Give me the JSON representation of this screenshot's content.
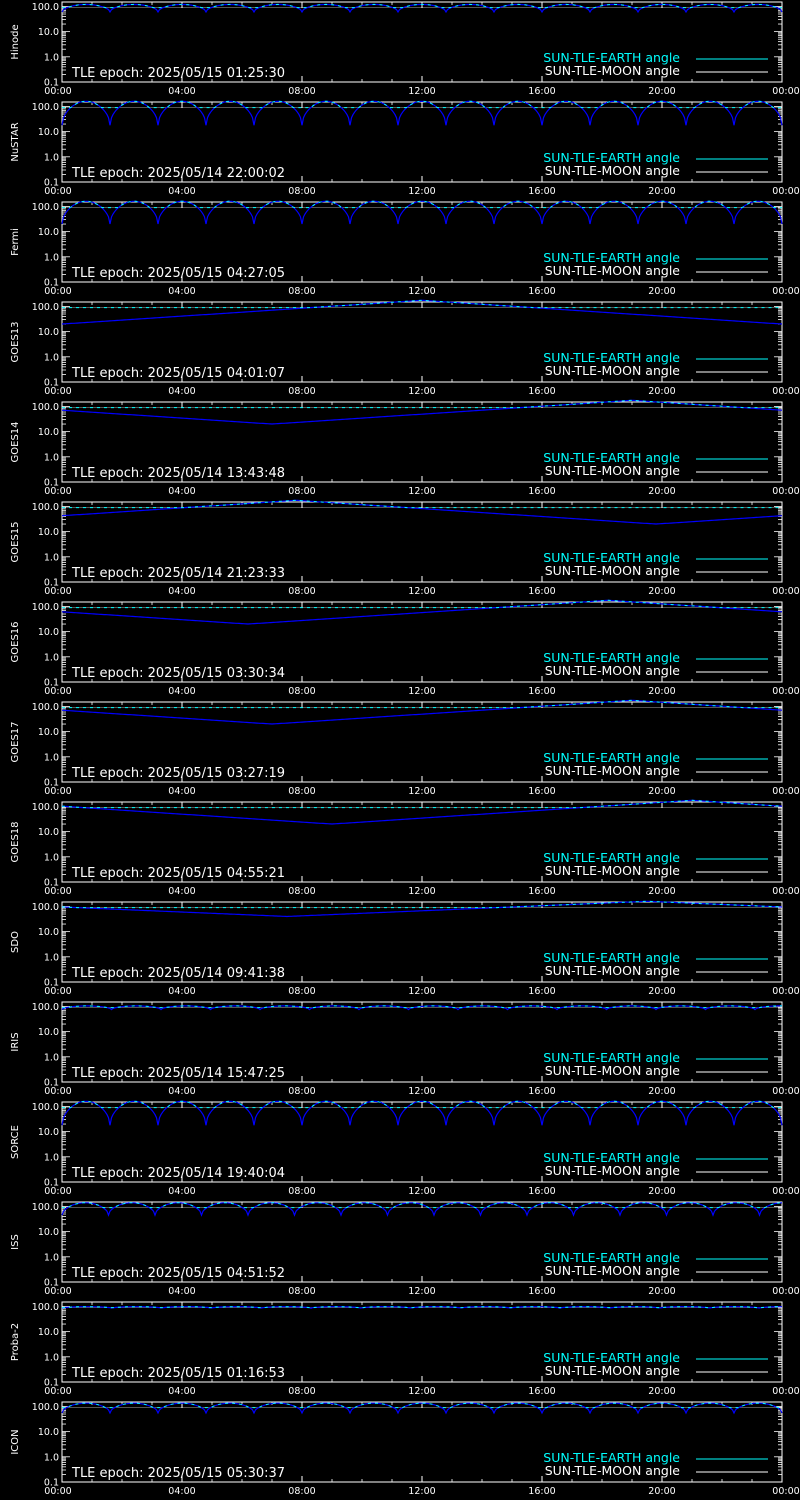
{
  "colors": {
    "background": "#000000",
    "axes": "#ffffff",
    "sun_tle_earth": "#00ffff",
    "sun_tle_moon": "#ffffff",
    "curve_fill": "#0000ff"
  },
  "chart_data": [
    {
      "type": "line",
      "ylabel": "Hinode",
      "epoch": "TLE epoch: 2025/05/15 01:25:30",
      "x_ticks": [
        "00:00",
        "04:00",
        "08:00",
        "12:00",
        "16:00",
        "20:00",
        "00:00"
      ],
      "y_ticks": [
        "100.0",
        "10.0",
        "1.0",
        "0.1"
      ],
      "y_scale": "log",
      "ylim": [
        0.1,
        150
      ],
      "xlim": [
        0,
        24
      ],
      "legend": [
        "SUN-TLE-EARTH angle",
        "SUN-TLE-MOON angle"
      ],
      "curve": {
        "kind": "orbital",
        "period_h": 1.6,
        "min": 60,
        "max": 120
      }
    },
    {
      "type": "line",
      "ylabel": "NuSTAR",
      "epoch": "TLE epoch: 2025/05/14 22:00:02",
      "x_ticks": [
        "00:00",
        "04:00",
        "08:00",
        "12:00",
        "16:00",
        "20:00",
        "00:00"
      ],
      "y_ticks": [
        "100.0",
        "10.0",
        "1.0",
        "0.1"
      ],
      "y_scale": "log",
      "ylim": [
        0.1,
        150
      ],
      "xlim": [
        0,
        24
      ],
      "legend": [
        "SUN-TLE-EARTH angle",
        "SUN-TLE-MOON angle"
      ],
      "curve": {
        "kind": "orbital",
        "period_h": 1.6,
        "min": 18,
        "max": 160
      }
    },
    {
      "type": "line",
      "ylabel": "Fermi",
      "epoch": "TLE epoch: 2025/05/15 04:27:05",
      "x_ticks": [
        "00:00",
        "04:00",
        "08:00",
        "12:00",
        "16:00",
        "20:00",
        "00:00"
      ],
      "y_ticks": [
        "100.0",
        "10.0",
        "1.0",
        "0.1"
      ],
      "y_scale": "log",
      "ylim": [
        0.1,
        150
      ],
      "xlim": [
        0,
        24
      ],
      "legend": [
        "SUN-TLE-EARTH angle",
        "SUN-TLE-MOON angle"
      ],
      "curve": {
        "kind": "orbital",
        "period_h": 1.6,
        "min": 20,
        "max": 160
      }
    },
    {
      "type": "line",
      "ylabel": "GOES13",
      "epoch": "TLE epoch: 2025/05/15 04:01:07",
      "x_ticks": [
        "00:00",
        "04:00",
        "08:00",
        "12:00",
        "16:00",
        "20:00",
        "00:00"
      ],
      "y_ticks": [
        "100.0",
        "10.0",
        "1.0",
        "0.1"
      ],
      "y_scale": "log",
      "ylim": [
        0.1,
        150
      ],
      "xlim": [
        0,
        24
      ],
      "legend": [
        "SUN-TLE-EARTH angle",
        "SUN-TLE-MOON angle"
      ],
      "curve": {
        "kind": "geo",
        "min_hour": 0,
        "min": 20,
        "max": 175
      }
    },
    {
      "type": "line",
      "ylabel": "GOES14",
      "epoch": "TLE epoch: 2025/05/14 13:43:48",
      "x_ticks": [
        "00:00",
        "04:00",
        "08:00",
        "12:00",
        "16:00",
        "20:00",
        "00:00"
      ],
      "y_ticks": [
        "100.0",
        "10.0",
        "1.0",
        "0.1"
      ],
      "y_scale": "log",
      "ylim": [
        0.1,
        150
      ],
      "xlim": [
        0,
        24
      ],
      "legend": [
        "SUN-TLE-EARTH angle",
        "SUN-TLE-MOON angle"
      ],
      "curve": {
        "kind": "geo",
        "min_hour": 7,
        "min": 20,
        "max": 175
      }
    },
    {
      "type": "line",
      "ylabel": "GOES15",
      "epoch": "TLE epoch: 2025/05/14 21:23:33",
      "x_ticks": [
        "00:00",
        "04:00",
        "08:00",
        "12:00",
        "16:00",
        "20:00",
        "00:00"
      ],
      "y_ticks": [
        "100.0",
        "10.0",
        "1.0",
        "0.1"
      ],
      "y_scale": "log",
      "ylim": [
        0.1,
        150
      ],
      "xlim": [
        0,
        24
      ],
      "legend": [
        "SUN-TLE-EARTH angle",
        "SUN-TLE-MOON angle"
      ],
      "curve": {
        "kind": "geo",
        "min_hour": 19.8,
        "min": 20,
        "max": 175
      }
    },
    {
      "type": "line",
      "ylabel": "GOES16",
      "epoch": "TLE epoch: 2025/05/15 03:30:34",
      "x_ticks": [
        "00:00",
        "04:00",
        "08:00",
        "12:00",
        "16:00",
        "20:00",
        "00:00"
      ],
      "y_ticks": [
        "100.0",
        "10.0",
        "1.0",
        "0.1"
      ],
      "y_scale": "log",
      "ylim": [
        0.1,
        150
      ],
      "xlim": [
        0,
        24
      ],
      "legend": [
        "SUN-TLE-EARTH angle",
        "SUN-TLE-MOON angle"
      ],
      "curve": {
        "kind": "geo",
        "min_hour": 6.2,
        "min": 20,
        "max": 175
      }
    },
    {
      "type": "line",
      "ylabel": "GOES17",
      "epoch": "TLE epoch: 2025/05/15 03:27:19",
      "x_ticks": [
        "00:00",
        "04:00",
        "08:00",
        "12:00",
        "16:00",
        "20:00",
        "00:00"
      ],
      "y_ticks": [
        "100.0",
        "10.0",
        "1.0",
        "0.1"
      ],
      "y_scale": "log",
      "ylim": [
        0.1,
        150
      ],
      "xlim": [
        0,
        24
      ],
      "legend": [
        "SUN-TLE-EARTH angle",
        "SUN-TLE-MOON angle"
      ],
      "curve": {
        "kind": "geo",
        "min_hour": 7,
        "min": 20,
        "max": 175
      }
    },
    {
      "type": "line",
      "ylabel": "GOES18",
      "epoch": "TLE epoch: 2025/05/15 04:55:21",
      "x_ticks": [
        "00:00",
        "04:00",
        "08:00",
        "12:00",
        "16:00",
        "20:00",
        "00:00"
      ],
      "y_ticks": [
        "100.0",
        "10.0",
        "1.0",
        "0.1"
      ],
      "y_scale": "log",
      "ylim": [
        0.1,
        150
      ],
      "xlim": [
        0,
        24
      ],
      "legend": [
        "SUN-TLE-EARTH angle",
        "SUN-TLE-MOON angle"
      ],
      "curve": {
        "kind": "geo",
        "min_hour": 9,
        "min": 20,
        "max": 175
      }
    },
    {
      "type": "line",
      "ylabel": "SDO",
      "epoch": "TLE epoch: 2025/05/14 09:41:38",
      "x_ticks": [
        "00:00",
        "04:00",
        "08:00",
        "12:00",
        "16:00",
        "20:00",
        "00:00"
      ],
      "y_ticks": [
        "100.0",
        "10.0",
        "1.0",
        "0.1"
      ],
      "y_scale": "log",
      "ylim": [
        0.1,
        150
      ],
      "xlim": [
        0,
        24
      ],
      "legend": [
        "SUN-TLE-EARTH angle",
        "SUN-TLE-MOON angle"
      ],
      "curve": {
        "kind": "geo",
        "min_hour": 7.5,
        "min": 40,
        "max": 160
      }
    },
    {
      "type": "line",
      "ylabel": "IRIS",
      "epoch": "TLE epoch: 2025/05/14 15:47:25",
      "x_ticks": [
        "00:00",
        "04:00",
        "08:00",
        "12:00",
        "16:00",
        "20:00",
        "00:00"
      ],
      "y_ticks": [
        "100.0",
        "10.0",
        "1.0",
        "0.1"
      ],
      "y_scale": "log",
      "ylim": [
        0.1,
        150
      ],
      "xlim": [
        0,
        24
      ],
      "legend": [
        "SUN-TLE-EARTH angle",
        "SUN-TLE-MOON angle"
      ],
      "curve": {
        "kind": "orbital",
        "period_h": 1.65,
        "min": 75,
        "max": 105
      }
    },
    {
      "type": "line",
      "ylabel": "SORCE",
      "epoch": "TLE epoch: 2025/05/14 19:40:04",
      "x_ticks": [
        "00:00",
        "04:00",
        "08:00",
        "12:00",
        "16:00",
        "20:00",
        "00:00"
      ],
      "y_ticks": [
        "100.0",
        "10.0",
        "1.0",
        "0.1"
      ],
      "y_scale": "log",
      "ylim": [
        0.1,
        150
      ],
      "xlim": [
        0,
        24
      ],
      "legend": [
        "SUN-TLE-EARTH angle",
        "SUN-TLE-MOON angle"
      ],
      "curve": {
        "kind": "orbital",
        "period_h": 1.6,
        "min": 18,
        "max": 160
      }
    },
    {
      "type": "line",
      "ylabel": "ISS",
      "epoch": "TLE epoch: 2025/05/15 04:51:52",
      "x_ticks": [
        "00:00",
        "04:00",
        "08:00",
        "12:00",
        "16:00",
        "20:00",
        "00:00"
      ],
      "y_ticks": [
        "100.0",
        "10.0",
        "1.0",
        "0.1"
      ],
      "y_scale": "log",
      "ylim": [
        0.1,
        150
      ],
      "xlim": [
        0,
        24
      ],
      "legend": [
        "SUN-TLE-EARTH angle",
        "SUN-TLE-MOON angle"
      ],
      "curve": {
        "kind": "orbital",
        "period_h": 1.55,
        "min": 45,
        "max": 140
      }
    },
    {
      "type": "line",
      "ylabel": "Proba-2",
      "epoch": "TLE epoch: 2025/05/15 01:16:53",
      "x_ticks": [
        "00:00",
        "04:00",
        "08:00",
        "12:00",
        "16:00",
        "20:00",
        "00:00"
      ],
      "y_ticks": [
        "100.0",
        "10.0",
        "1.0",
        "0.1"
      ],
      "y_scale": "log",
      "ylim": [
        0.1,
        150
      ],
      "xlim": [
        0,
        24
      ],
      "legend": [
        "SUN-TLE-EARTH angle",
        "SUN-TLE-MOON angle"
      ],
      "curve": {
        "kind": "orbital",
        "period_h": 1.66,
        "min": 85,
        "max": 98
      }
    },
    {
      "type": "line",
      "ylabel": "ICON",
      "epoch": "TLE epoch: 2025/05/15 05:30:37",
      "x_ticks": [
        "00:00",
        "04:00",
        "08:00",
        "12:00",
        "16:00",
        "20:00",
        "00:00"
      ],
      "y_ticks": [
        "100.0",
        "10.0",
        "1.0",
        "0.1"
      ],
      "y_scale": "log",
      "ylim": [
        0.1,
        150
      ],
      "xlim": [
        0,
        24
      ],
      "legend": [
        "SUN-TLE-EARTH angle",
        "SUN-TLE-MOON angle"
      ],
      "curve": {
        "kind": "orbital",
        "period_h": 1.6,
        "min": 55,
        "max": 135
      }
    }
  ]
}
